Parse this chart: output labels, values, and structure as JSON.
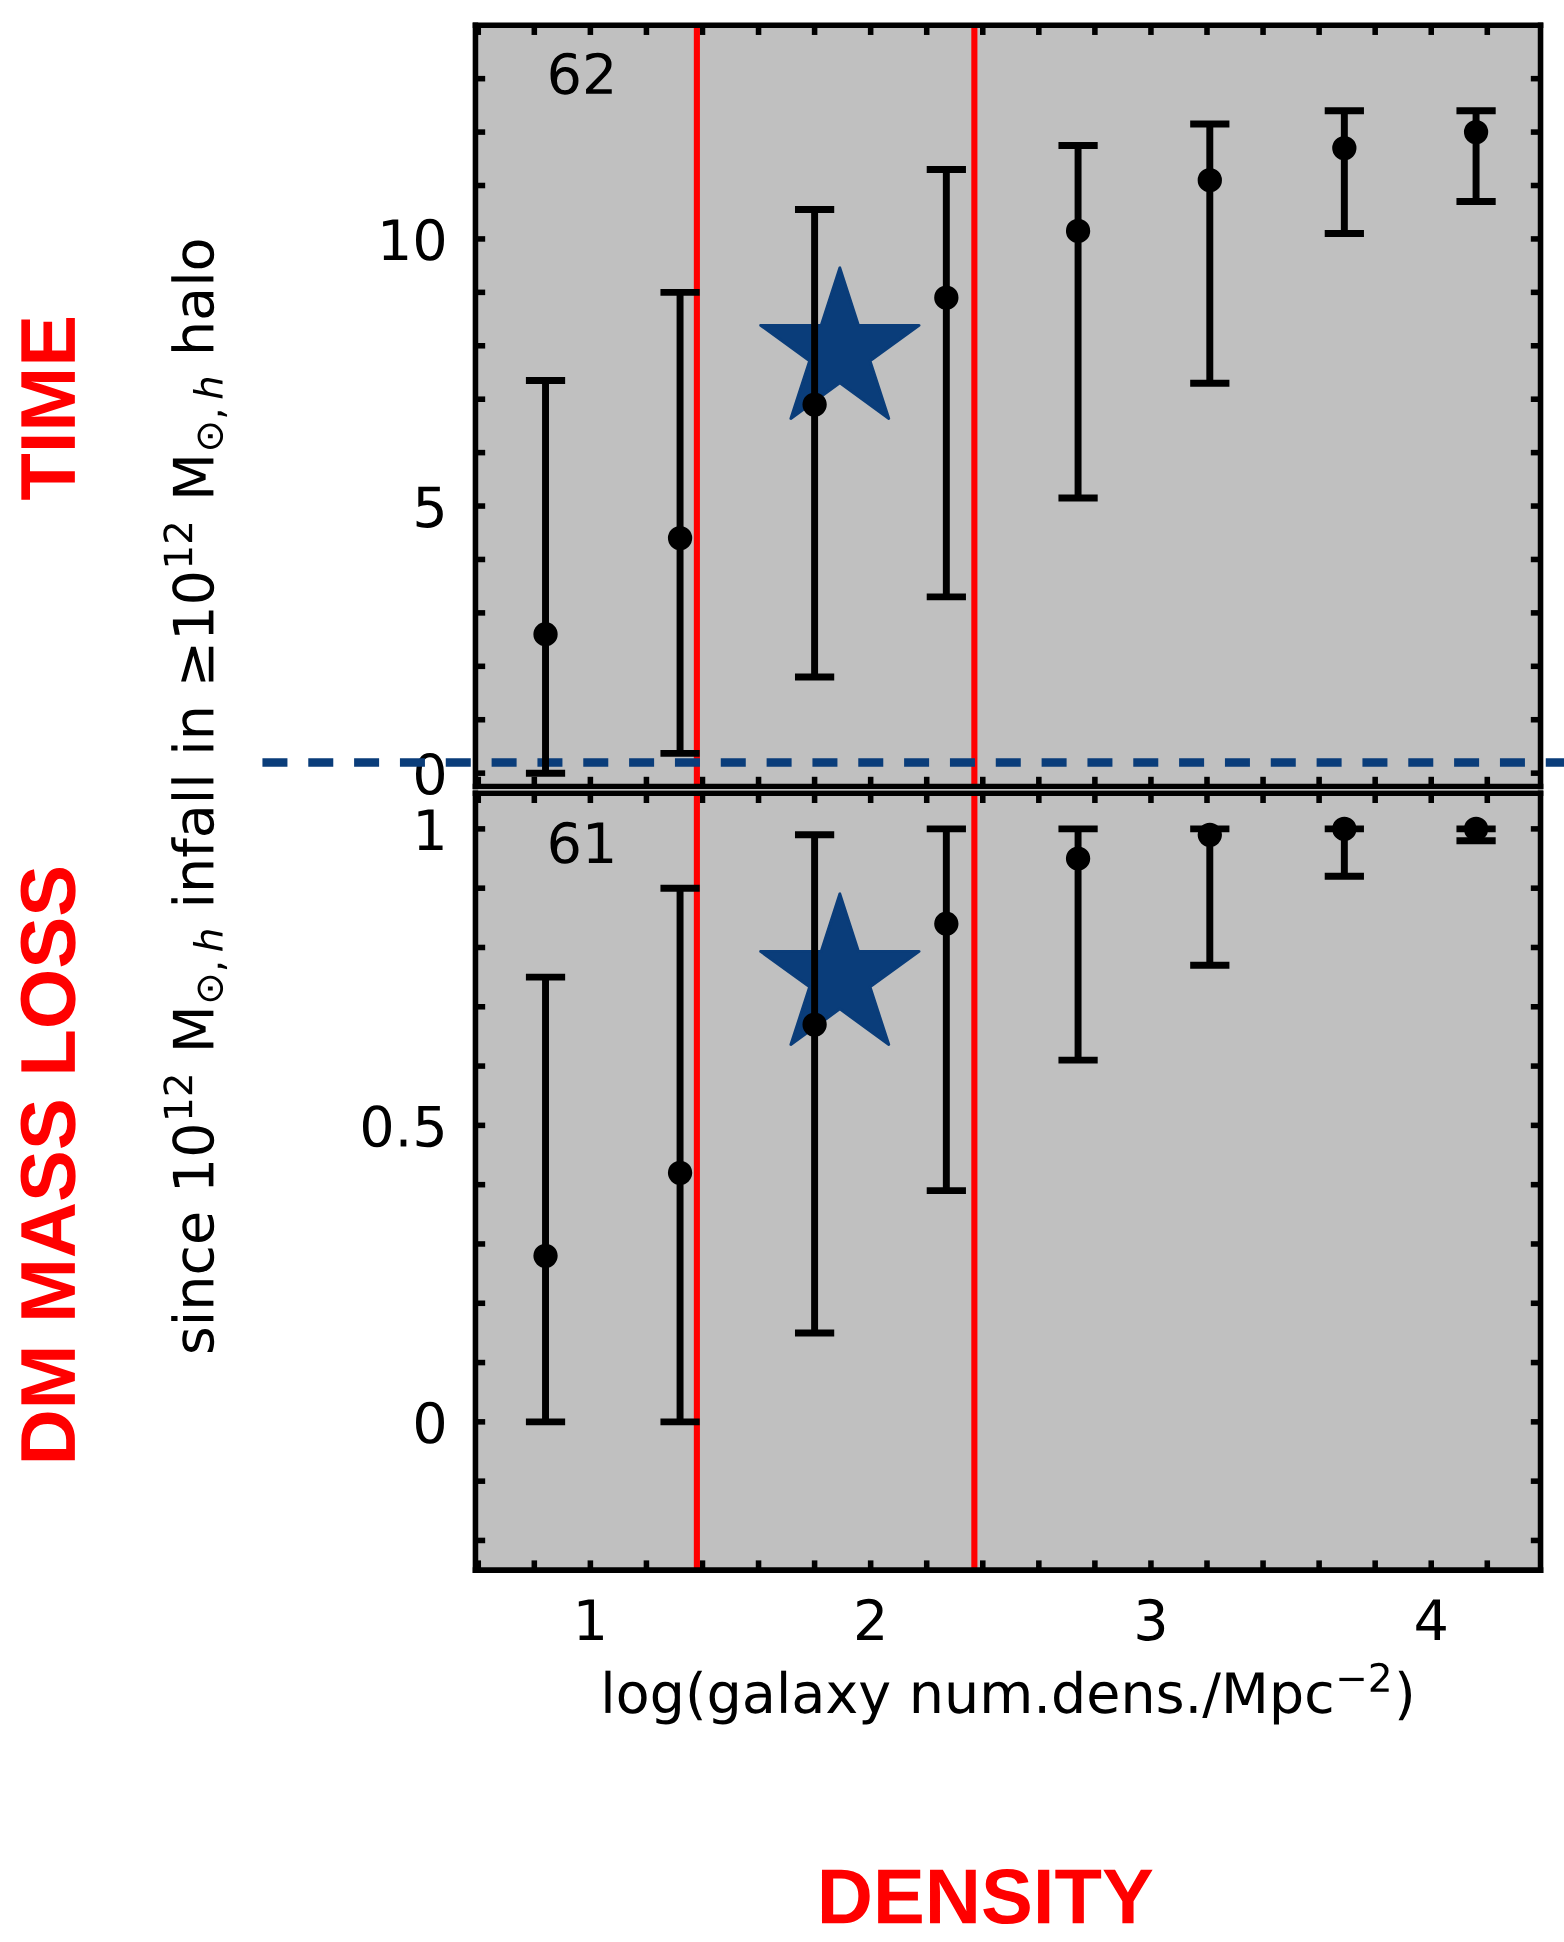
{
  "chart_data": [
    {
      "type": "scatter",
      "ylabel": "since 10$^{12}$ M$_{⊙,h}$ infall in ≥10$^{12}$ M$_{⊙,h}$ halo",
      "annotations": [
        "62",
        "TIME"
      ],
      "x": [
        0.84,
        1.32,
        1.8,
        2.27,
        2.74,
        3.21,
        3.69,
        4.16
      ],
      "series": [
        {
          "color": "#000000",
          "marker": "circle",
          "values": [
            2.6,
            4.4,
            6.9,
            8.9,
            10.15,
            11.1,
            11.7,
            12.0
          ],
          "errors": [
            [
              0,
              7.35
            ],
            [
              0.37,
              9.0
            ],
            [
              1.8,
              10.55
            ],
            [
              3.3,
              11.3
            ],
            [
              5.15,
              11.75
            ],
            [
              7.3,
              12.15
            ],
            [
              10.1,
              12.4
            ],
            [
              10.7,
              12.4
            ]
          ]
        },
        {
          "color": "#0a3d7a",
          "marker": "star",
          "x": [
            1.89
          ],
          "values": [
            7.9
          ]
        }
      ],
      "xlim": [
        0.59,
        4.39
      ],
      "ylim": [
        -0.25,
        14
      ],
      "tick_labels": "y",
      "xticks": [
        {
          "value": 0.6,
          "label": null
        },
        {
          "value": 0.8,
          "label": null
        },
        1,
        {
          "value": 1.2,
          "label": null
        },
        {
          "value": 1.4,
          "label": null
        },
        {
          "value": 1.6,
          "label": null
        },
        {
          "value": 1.8,
          "label": null
        },
        2,
        {
          "value": 2.2,
          "label": null
        },
        {
          "value": 2.4,
          "label": null
        },
        {
          "value": 2.6,
          "label": null
        },
        {
          "value": 2.8,
          "label": null
        },
        3,
        {
          "value": 3.2,
          "label": null
        },
        {
          "value": 3.4,
          "label": null
        },
        {
          "value": 3.6,
          "label": null
        },
        {
          "value": 3.8,
          "label": null
        },
        4,
        {
          "value": 4.2,
          "label": null
        }
      ],
      "yticks": [
        0,
        {
          "value": 1,
          "label": null
        },
        {
          "value": 2,
          "label": null
        },
        {
          "value": 3,
          "label": null
        },
        {
          "value": 4,
          "label": null
        },
        5,
        {
          "value": 6,
          "label": null
        },
        {
          "value": 7,
          "label": null
        },
        {
          "value": 8,
          "label": null
        },
        {
          "value": 9,
          "label": null
        },
        10,
        {
          "value": 11,
          "label": null
        },
        {
          "value": 12,
          "label": null
        },
        {
          "value": 13,
          "label": null
        }
      ],
      "ref_lines": [
        {
          "axis": "x",
          "value": 1.38,
          "color": "#ff0000",
          "line_style": "solid"
        },
        {
          "axis": "x",
          "value": 2.37,
          "color": "#ff0000",
          "line_style": "solid"
        },
        {
          "axis": "y",
          "value": 0.2,
          "color": "#0a3d7a",
          "line_style": "dashed"
        }
      ],
      "grid": false
    },
    {
      "type": "scatter",
      "xlabel": "log(galaxy num.dens./Mpc$^{−2}$)",
      "annotations": [
        "61",
        "DM MASS LOSS",
        "DENSITY"
      ],
      "x": [
        0.84,
        1.32,
        1.8,
        2.27,
        2.74,
        3.21,
        3.69,
        4.16
      ],
      "series": [
        {
          "color": "#000000",
          "marker": "circle",
          "values": [
            0.28,
            0.42,
            0.67,
            0.84,
            0.95,
            0.99,
            1.0,
            1.0
          ],
          "errors": [
            [
              0,
              0.75
            ],
            [
              0,
              0.9
            ],
            [
              0.15,
              0.99
            ],
            [
              0.39,
              1.0
            ],
            [
              0.61,
              1.0
            ],
            [
              0.77,
              1.0
            ],
            [
              0.92,
              1.0
            ],
            [
              0.98,
              1.0
            ]
          ]
        },
        {
          "color": "#0a3d7a",
          "marker": "star",
          "x": [
            1.89
          ],
          "values": [
            0.75
          ]
        }
      ],
      "xlim": [
        0.59,
        4.39
      ],
      "ylim": [
        -0.25,
        1.06
      ],
      "xticks": [
        {
          "value": 0.6,
          "label": null
        },
        {
          "value": 0.8,
          "label": null
        },
        1,
        {
          "value": 1.2,
          "label": null
        },
        {
          "value": 1.4,
          "label": null
        },
        {
          "value": 1.6,
          "label": null
        },
        {
          "value": 1.8,
          "label": null
        },
        2,
        {
          "value": 2.2,
          "label": null
        },
        {
          "value": 2.4,
          "label": null
        },
        {
          "value": 2.6,
          "label": null
        },
        {
          "value": 2.8,
          "label": null
        },
        3,
        {
          "value": 3.2,
          "label": null
        },
        {
          "value": 3.4,
          "label": null
        },
        {
          "value": 3.6,
          "label": null
        },
        {
          "value": 3.8,
          "label": null
        },
        4,
        {
          "value": 4.2,
          "label": null
        }
      ],
      "yticks": [
        {
          "value": -0.2,
          "label": null
        },
        {
          "value": -0.1,
          "label": null
        },
        0,
        {
          "value": 0.1,
          "label": null
        },
        {
          "value": 0.2,
          "label": null
        },
        {
          "value": 0.3,
          "label": null
        },
        {
          "value": 0.4,
          "label": null
        },
        0.5,
        {
          "value": 0.6,
          "label": null
        },
        {
          "value": 0.7,
          "label": null
        },
        {
          "value": 0.8,
          "label": null
        },
        {
          "value": 0.9,
          "label": null
        },
        1
      ],
      "ref_lines": [
        {
          "axis": "x",
          "value": 1.38,
          "color": "#ff0000",
          "line_style": "solid"
        },
        {
          "axis": "x",
          "value": 2.37,
          "color": "#ff0000",
          "line_style": "solid"
        }
      ],
      "grid": false
    }
  ]
}
